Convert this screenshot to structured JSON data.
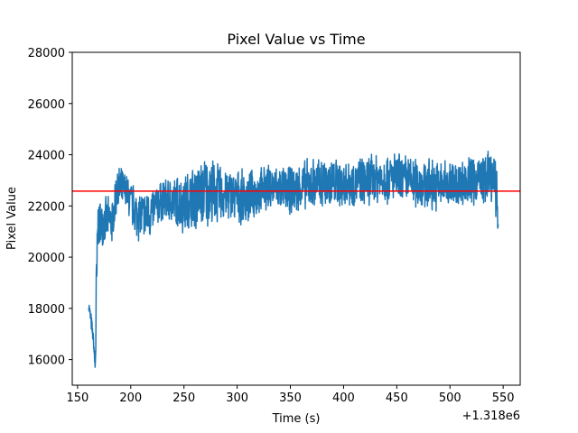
{
  "chart_data": {
    "type": "line",
    "title": "Pixel Value vs Time",
    "xlabel": "Time (s)",
    "ylabel": "Pixel Value",
    "x_offset_label": "+1.318e6",
    "xlim": [
      145,
      566
    ],
    "ylim": [
      15000,
      28000
    ],
    "xticks": [
      150,
      200,
      250,
      300,
      350,
      400,
      450,
      500,
      550
    ],
    "yticks": [
      16000,
      18000,
      20000,
      22000,
      24000,
      26000,
      28000
    ],
    "grid": false,
    "series": [
      {
        "name": "pixel value",
        "color": "#1f77b4",
        "noise_seed": 7,
        "envelope": [
          {
            "x": 160.5,
            "lo": 17900,
            "hi": 18400
          },
          {
            "x": 163,
            "lo": 17000,
            "hi": 17800
          },
          {
            "x": 165,
            "lo": 16400,
            "hi": 17000
          },
          {
            "x": 166.5,
            "lo": 15100,
            "hi": 16200
          },
          {
            "x": 167.5,
            "lo": 15000,
            "hi": 20300
          },
          {
            "x": 169,
            "lo": 20200,
            "hi": 22300
          },
          {
            "x": 175,
            "lo": 20500,
            "hi": 22400
          },
          {
            "x": 183,
            "lo": 20400,
            "hi": 22400
          },
          {
            "x": 187,
            "lo": 21600,
            "hi": 23700
          },
          {
            "x": 195,
            "lo": 21800,
            "hi": 23400
          },
          {
            "x": 205,
            "lo": 20600,
            "hi": 22800
          },
          {
            "x": 215,
            "lo": 20400,
            "hi": 22700
          },
          {
            "x": 230,
            "lo": 21400,
            "hi": 23100
          },
          {
            "x": 250,
            "lo": 20800,
            "hi": 23400
          },
          {
            "x": 270,
            "lo": 21000,
            "hi": 24100
          },
          {
            "x": 290,
            "lo": 21300,
            "hi": 23600
          },
          {
            "x": 310,
            "lo": 21200,
            "hi": 23400
          },
          {
            "x": 330,
            "lo": 21800,
            "hi": 23700
          },
          {
            "x": 350,
            "lo": 21600,
            "hi": 23600
          },
          {
            "x": 370,
            "lo": 21700,
            "hi": 24000
          },
          {
            "x": 390,
            "lo": 21800,
            "hi": 24000
          },
          {
            "x": 410,
            "lo": 21900,
            "hi": 23900
          },
          {
            "x": 430,
            "lo": 22000,
            "hi": 24200
          },
          {
            "x": 450,
            "lo": 22000,
            "hi": 24200
          },
          {
            "x": 470,
            "lo": 21800,
            "hi": 24000
          },
          {
            "x": 490,
            "lo": 21700,
            "hi": 23900
          },
          {
            "x": 510,
            "lo": 21900,
            "hi": 23900
          },
          {
            "x": 525,
            "lo": 21900,
            "hi": 24200
          },
          {
            "x": 540,
            "lo": 22000,
            "hi": 24200
          },
          {
            "x": 544,
            "lo": 21400,
            "hi": 23800
          },
          {
            "x": 545.5,
            "lo": 20400,
            "hi": 21200
          }
        ]
      },
      {
        "name": "reference line",
        "type": "hline",
        "y": 22580,
        "color": "#ff0000"
      }
    ]
  }
}
